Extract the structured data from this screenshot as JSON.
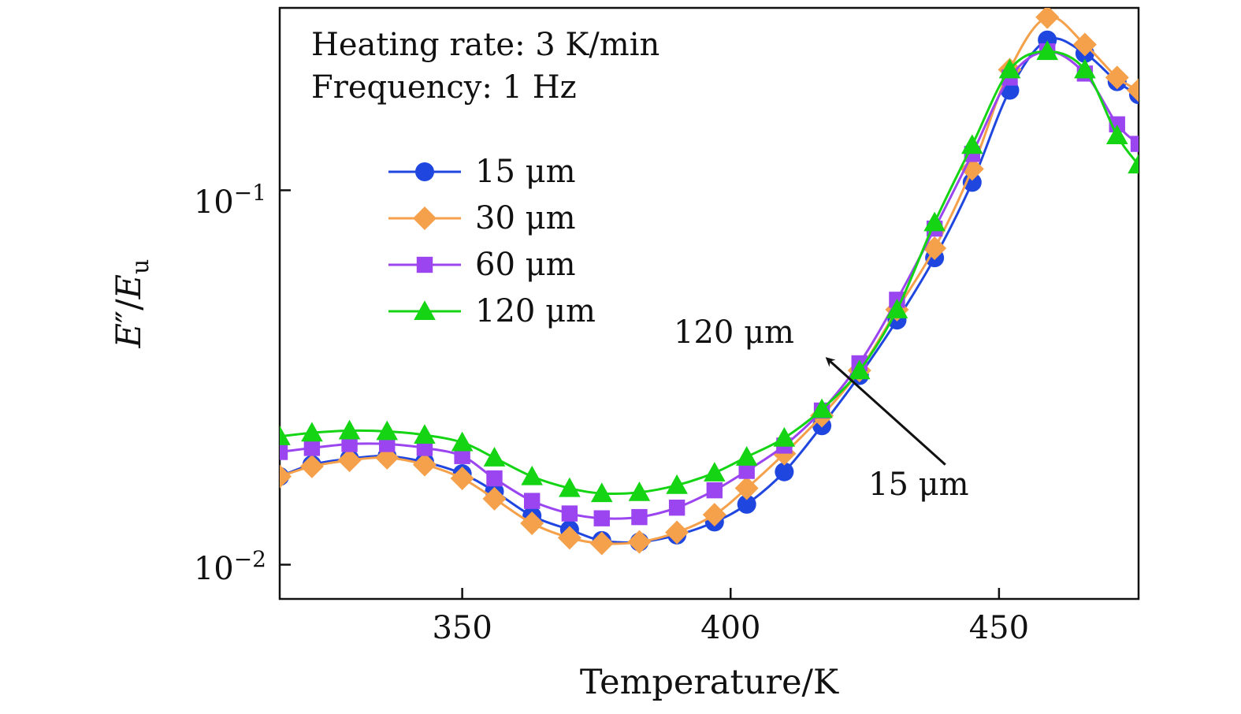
{
  "chart_data": {
    "type": "line",
    "xlabel": "Temperature/K",
    "ylabel": "E″/E_u",
    "xlim": [
      316,
      476
    ],
    "ylim": [
      0.0081,
      0.307
    ],
    "yscale": "log",
    "x_ticks": [
      350,
      400,
      450
    ],
    "x_tick_labels": [
      "350",
      "400",
      "450"
    ],
    "y_ticks": [
      0.01,
      0.1
    ],
    "y_tick_labels": [
      "10⁻²",
      "10⁻¹"
    ],
    "annotations": [
      {
        "text": "Heating rate: 3 K/min"
      },
      {
        "text": "Frequency: 1 Hz"
      },
      {
        "text": "120 μm"
      },
      {
        "text": "15 μm"
      }
    ],
    "arrow": {
      "from": [
        440,
        0.0185
      ],
      "to": [
        418,
        0.0355
      ]
    },
    "legend_position": "upper-left",
    "series": [
      {
        "name": "15 μm",
        "color": "#1f47e0",
        "marker": "circle",
        "x": [
          316,
          322,
          329,
          336,
          343,
          350,
          356,
          363,
          370,
          376,
          383,
          390,
          397,
          403,
          410,
          417,
          424,
          431,
          438,
          445,
          452,
          459,
          466,
          472,
          476
        ],
        "y": [
          0.0172,
          0.0185,
          0.0192,
          0.0195,
          0.0188,
          0.0175,
          0.0157,
          0.0135,
          0.0124,
          0.0116,
          0.0115,
          0.012,
          0.013,
          0.0145,
          0.0177,
          0.0235,
          0.032,
          0.045,
          0.066,
          0.105,
          0.185,
          0.252,
          0.232,
          0.195,
          0.18
        ]
      },
      {
        "name": "30 μm",
        "color": "#f5a04a",
        "marker": "diamond",
        "x": [
          316,
          322,
          329,
          336,
          343,
          350,
          356,
          363,
          370,
          376,
          383,
          390,
          397,
          403,
          410,
          417,
          424,
          431,
          438,
          445,
          452,
          459,
          466,
          472,
          476
        ],
        "y": [
          0.0172,
          0.0183,
          0.019,
          0.0193,
          0.0185,
          0.017,
          0.015,
          0.0129,
          0.0118,
          0.0114,
          0.0115,
          0.0122,
          0.0136,
          0.016,
          0.0198,
          0.025,
          0.033,
          0.048,
          0.07,
          0.114,
          0.21,
          0.29,
          0.245,
          0.2,
          0.185
        ]
      },
      {
        "name": "60 μm",
        "color": "#9b45f0",
        "marker": "square",
        "x": [
          316,
          322,
          329,
          336,
          343,
          350,
          356,
          363,
          370,
          376,
          383,
          390,
          397,
          403,
          410,
          417,
          424,
          431,
          438,
          445,
          452,
          459,
          466,
          472,
          476
        ],
        "y": [
          0.02,
          0.0205,
          0.021,
          0.021,
          0.0205,
          0.0195,
          0.017,
          0.0148,
          0.0137,
          0.0133,
          0.0134,
          0.0142,
          0.0158,
          0.0178,
          0.0208,
          0.0258,
          0.0345,
          0.051,
          0.079,
          0.125,
          0.2,
          0.235,
          0.205,
          0.15,
          0.133
        ]
      },
      {
        "name": "120 μm",
        "color": "#14d414",
        "marker": "triangle",
        "x": [
          316,
          322,
          329,
          336,
          343,
          350,
          356,
          363,
          370,
          376,
          383,
          390,
          397,
          403,
          410,
          417,
          424,
          431,
          438,
          445,
          452,
          459,
          466,
          472,
          476
        ],
        "y": [
          0.022,
          0.0225,
          0.0228,
          0.0227,
          0.0222,
          0.0212,
          0.0193,
          0.0172,
          0.016,
          0.0155,
          0.0156,
          0.0163,
          0.0176,
          0.0194,
          0.0218,
          0.026,
          0.033,
          0.048,
          0.082,
          0.132,
          0.21,
          0.235,
          0.21,
          0.14,
          0.117
        ]
      }
    ]
  }
}
